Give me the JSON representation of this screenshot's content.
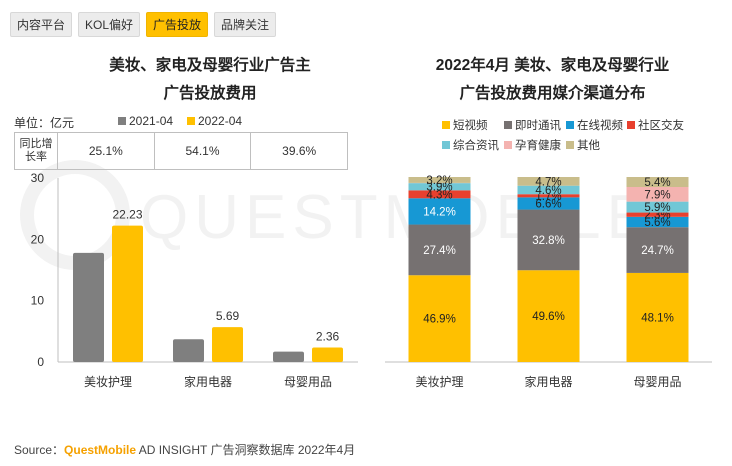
{
  "tabs": [
    "内容平台",
    "KOL偏好",
    "广告投放",
    "品牌关注"
  ],
  "active_tab": 2,
  "left_title_line1": "美妆、家电及母婴行业广告主",
  "left_title_line2": "广告投放费用",
  "right_title_line1": "2022年4月 美妆、家电及母婴行业",
  "right_title_line2": "广告投放费用媒介渠道分布",
  "unit_label": "单位：亿元",
  "growth_header": "同比增长率",
  "growth_values": [
    "25.1%",
    "54.1%",
    "39.6%"
  ],
  "source": {
    "prefix": "Source：",
    "brand": "QuestMobile",
    "rest": " AD INSIGHT 广告洞察数据库 2022年4月"
  },
  "watermark_text": "QUESTMOBILE",
  "colors": {
    "series_2021": "#7f7f7f",
    "series_2022": "#ffc000",
    "短视频": "#ffc000",
    "即时通讯": "#767171",
    "在线视频": "#1798d4",
    "社区交友": "#e8402e",
    "综合资讯": "#71c7d6",
    "孕育健康": "#f4b3b0",
    "其他": "#c9bd8b"
  },
  "chart_data": [
    {
      "type": "bar",
      "categories": [
        "美妆护理",
        "家用电器",
        "母婴用品"
      ],
      "series": [
        {
          "name": "2021-04",
          "values": [
            17.8,
            3.7,
            1.7
          ]
        },
        {
          "name": "2022-04",
          "values": [
            22.23,
            5.69,
            2.36
          ]
        }
      ],
      "data_labels": [
        "22.23",
        "5.69",
        "2.36"
      ],
      "ylim": [
        0,
        30
      ],
      "yticks": [
        0,
        10,
        20,
        30
      ],
      "legend": "top-right"
    },
    {
      "type": "bar",
      "stacked": true,
      "normalized": true,
      "categories": [
        "美妆护理",
        "家用电器",
        "母婴用品"
      ],
      "series": [
        {
          "name": "短视频",
          "values": [
            46.9,
            49.6,
            48.1
          ],
          "labels": [
            "46.9%",
            "49.6%",
            "48.1%"
          ]
        },
        {
          "name": "即时通讯",
          "values": [
            27.4,
            32.8,
            24.7
          ],
          "labels": [
            "27.4%",
            "32.8%",
            "24.7%"
          ]
        },
        {
          "name": "在线视频",
          "values": [
            14.2,
            6.6,
            5.6
          ],
          "labels": [
            "14.2%",
            "6.6%",
            "5.6%"
          ]
        },
        {
          "name": "社区交友",
          "values": [
            4.3,
            1.7,
            2.3
          ],
          "labels": [
            "4.3%",
            "1.7%",
            "2.3%"
          ]
        },
        {
          "name": "综合资讯",
          "values": [
            3.9,
            4.6,
            5.9
          ],
          "labels": [
            "3.9%",
            "4.6%",
            "5.9%"
          ]
        },
        {
          "name": "孕育健康",
          "values": [
            0.1,
            0.0,
            7.9
          ],
          "labels": [
            "",
            "",
            "7.9%"
          ]
        },
        {
          "name": "其他",
          "values": [
            3.2,
            4.7,
            5.4
          ],
          "labels": [
            "3.2%",
            "4.7%",
            "5.4%"
          ]
        }
      ],
      "legend": "top"
    }
  ]
}
